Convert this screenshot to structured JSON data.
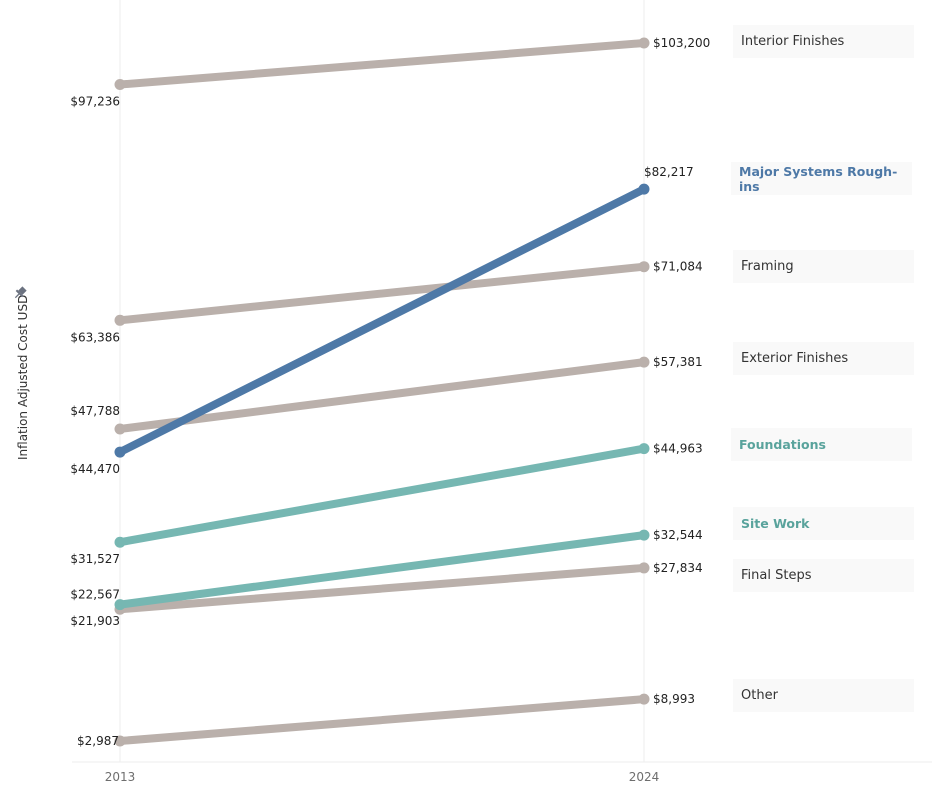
{
  "axis": {
    "y_title": "Inflation Adjusted Cost USD",
    "pin_icon": "pin-icon",
    "x_ticks": [
      "2013",
      "2024"
    ]
  },
  "colors": {
    "gray": "#bab0ab",
    "blue": "#4e79a7",
    "teal": "#76b7b2",
    "teal_text": "#59a39c",
    "grid": "#eeeeee"
  },
  "legend": [
    {
      "label": "Interior Finishes",
      "style": "normal"
    },
    {
      "label": "Major Systems Rough-ins",
      "style": "blue"
    },
    {
      "label": "Framing",
      "style": "normal"
    },
    {
      "label": "Exterior Finishes",
      "style": "normal"
    },
    {
      "label": "Foundations",
      "style": "teal"
    },
    {
      "label": "Site Work",
      "style": "teal"
    },
    {
      "label": "Final Steps",
      "style": "normal"
    },
    {
      "label": "Other",
      "style": "normal"
    }
  ],
  "chart_data": {
    "type": "line",
    "title": "",
    "xlabel": "",
    "ylabel": "Inflation Adjusted Cost USD",
    "categories": [
      "2013",
      "2024"
    ],
    "series": [
      {
        "name": "Interior Finishes",
        "values": [
          97236,
          103200
        ],
        "labels": [
          "$97,236",
          "$103,200"
        ],
        "color": "#bab0ab"
      },
      {
        "name": "Major Systems Rough-ins",
        "values": [
          44470,
          82217
        ],
        "labels": [
          "$44,470",
          "$82,217"
        ],
        "color": "#4e79a7"
      },
      {
        "name": "Framing",
        "values": [
          63386,
          71084
        ],
        "labels": [
          "$63,386",
          "$71,084"
        ],
        "color": "#bab0ab"
      },
      {
        "name": "Exterior Finishes",
        "values": [
          47788,
          57381
        ],
        "labels": [
          "$47,788",
          "$57,381"
        ],
        "color": "#bab0ab"
      },
      {
        "name": "Foundations",
        "values": [
          31527,
          44963
        ],
        "labels": [
          "$31,527",
          "$44,963"
        ],
        "color": "#76b7b2"
      },
      {
        "name": "Site Work",
        "values": [
          22567,
          32544
        ],
        "labels": [
          "$22,567",
          "$32,544"
        ],
        "color": "#76b7b2"
      },
      {
        "name": "Final Steps",
        "values": [
          21903,
          27834
        ],
        "labels": [
          "$21,903",
          "$27,834"
        ],
        "color": "#bab0ab"
      },
      {
        "name": "Other",
        "values": [
          2987,
          8993
        ],
        "labels": [
          "$2,987",
          "$8,993"
        ],
        "color": "#bab0ab"
      }
    ],
    "grid": false,
    "legend_position": "right (direct labels)"
  }
}
